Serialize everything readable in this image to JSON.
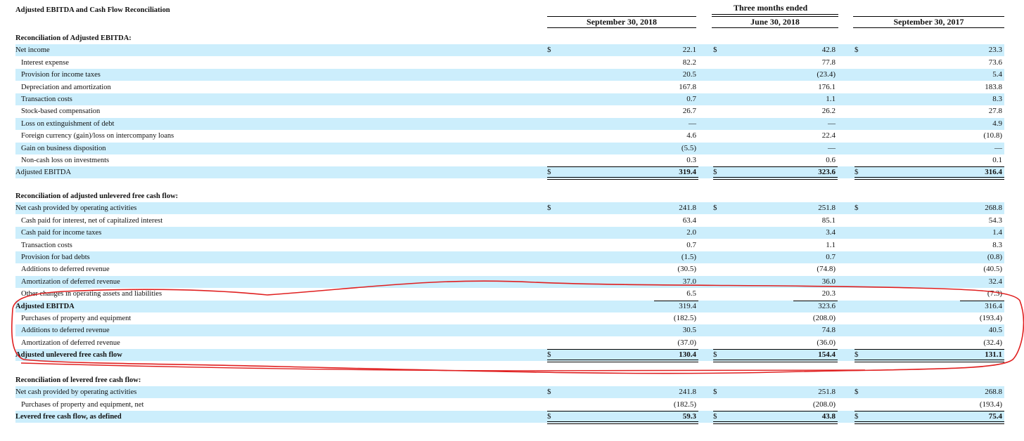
{
  "title": "Adjusted EBITDA and Cash Flow Reconciliation",
  "period_header": "Three months ended",
  "columns": [
    "September 30, 2018",
    "June 30, 2018",
    "September 30, 2017"
  ],
  "currency_symbol": "$",
  "colors": {
    "shade": "#cceefc",
    "annotation": "#e02020"
  },
  "sections": [
    {
      "heading": "Reconciliation of Adjusted EBITDA:",
      "rows": [
        {
          "label": "Net income",
          "values": [
            "22.1",
            "42.8",
            "23.3"
          ],
          "dollar": true,
          "indent": false,
          "bold": false
        },
        {
          "label": "Interest expense",
          "values": [
            "82.2",
            "77.8",
            "73.6"
          ],
          "indent": true
        },
        {
          "label": "Provision for income taxes",
          "values": [
            "20.5",
            "(23.4)",
            "5.4"
          ],
          "indent": true
        },
        {
          "label": "Depreciation and amortization",
          "values": [
            "167.8",
            "176.1",
            "183.8"
          ],
          "indent": true
        },
        {
          "label": "Transaction costs",
          "values": [
            "0.7",
            "1.1",
            "8.3"
          ],
          "indent": true
        },
        {
          "label": "Stock-based compensation",
          "values": [
            "26.7",
            "26.2",
            "27.8"
          ],
          "indent": true
        },
        {
          "label": "Loss on extinguishment of debt",
          "values": [
            "—",
            "—",
            "4.9"
          ],
          "indent": true
        },
        {
          "label": "Foreign currency (gain)/loss on intercompany loans",
          "values": [
            "4.6",
            "22.4",
            "(10.8)"
          ],
          "indent": true
        },
        {
          "label": "Gain on business disposition",
          "values": [
            "(5.5)",
            "—",
            "—"
          ],
          "indent": true
        },
        {
          "label": "Non-cash loss on investments",
          "values": [
            "0.3",
            "0.6",
            "0.1"
          ],
          "indent": true
        },
        {
          "label": "Adjusted EBITDA",
          "values": [
            "319.4",
            "323.6",
            "316.4"
          ],
          "dollar": true,
          "total": true,
          "bold_values": true
        }
      ]
    },
    {
      "heading": "Reconciliation of adjusted unlevered free cash flow:",
      "rows": [
        {
          "label": "Net cash provided by operating activities",
          "values": [
            "241.8",
            "251.8",
            "268.8"
          ],
          "dollar": true
        },
        {
          "label": "Cash paid for interest, net of capitalized interest",
          "values": [
            "63.4",
            "85.1",
            "54.3"
          ],
          "indent": true
        },
        {
          "label": "Cash paid for income taxes",
          "values": [
            "2.0",
            "3.4",
            "1.4"
          ],
          "indent": true
        },
        {
          "label": "Transaction costs",
          "values": [
            "0.7",
            "1.1",
            "8.3"
          ],
          "indent": true
        },
        {
          "label": "Provision for bad debts",
          "values": [
            "(1.5)",
            "0.7",
            "(0.8)"
          ],
          "indent": true
        },
        {
          "label": "Additions to deferred revenue",
          "values": [
            "(30.5)",
            "(74.8)",
            "(40.5)"
          ],
          "indent": true
        },
        {
          "label": "Amortization of deferred revenue",
          "values": [
            "37.0",
            "36.0",
            "32.4"
          ],
          "indent": true
        },
        {
          "label": "Other changes in operating assets and liabilities",
          "values": [
            "6.5",
            "20.3",
            "(7.3)"
          ],
          "indent": true
        },
        {
          "label": "Adjusted EBITDA",
          "values": [
            "319.4",
            "323.6",
            "316.4"
          ],
          "bold": true,
          "line_above": true
        },
        {
          "label": "Purchases of property and equipment",
          "values": [
            "(182.5)",
            "(208.0)",
            "(193.4)"
          ],
          "indent": true
        },
        {
          "label": "Additions to deferred revenue",
          "values": [
            "30.5",
            "74.8",
            "40.5"
          ],
          "indent": true
        },
        {
          "label": "Amortization of deferred revenue",
          "values": [
            "(37.0)",
            "(36.0)",
            "(32.4)"
          ],
          "indent": true
        },
        {
          "label": "Adjusted unlevered free cash flow",
          "values": [
            "130.4",
            "154.4",
            "131.1"
          ],
          "dollar": true,
          "total": true,
          "bold": true,
          "bold_values": true
        }
      ]
    },
    {
      "heading": "Reconciliation of levered free cash flow:",
      "rows": [
        {
          "label": "Net cash provided by operating activities",
          "values": [
            "241.8",
            "251.8",
            "268.8"
          ],
          "dollar": true
        },
        {
          "label": "Purchases of property and equipment, net",
          "values": [
            "(182.5)",
            "(208.0)",
            "(193.4)"
          ],
          "indent": true
        },
        {
          "label": "Levered free cash flow, as defined",
          "values": [
            "59.3",
            "43.8",
            "75.4"
          ],
          "dollar": true,
          "total": true,
          "bold": true,
          "bold_values": true
        }
      ]
    }
  ]
}
